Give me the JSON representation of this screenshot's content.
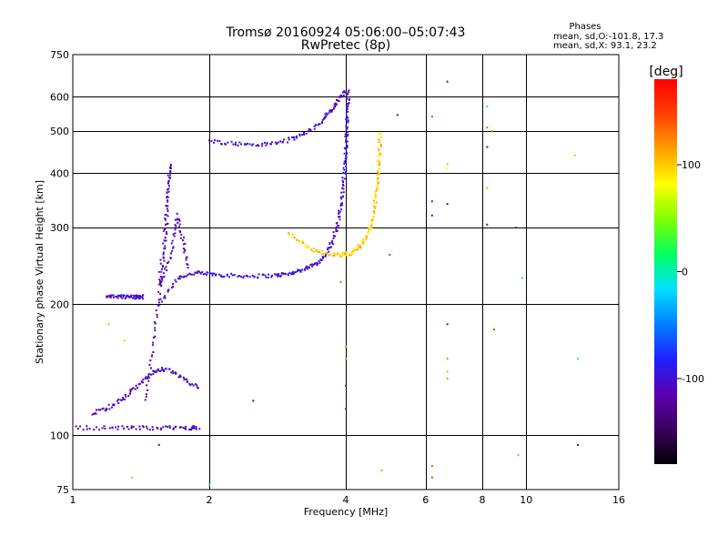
{
  "chart_data": {
    "type": "scatter",
    "title": "Tromsø 20160924 05:06:00–05:07:43",
    "subtitle": "RwPretec (8p)",
    "xlabel": "Frequency [MHz]",
    "ylabel": "Stationary phase Virtual Height [km]",
    "x_scale": "log2",
    "y_scale": "log",
    "xlim": [
      1,
      16
    ],
    "ylim": [
      75,
      750
    ],
    "x_ticks": [
      1,
      2,
      4,
      6,
      8,
      10,
      16
    ],
    "y_ticks": [
      75,
      100,
      200,
      300,
      400,
      500,
      600,
      750
    ],
    "grid": true,
    "colorbar": {
      "label": "[deg]",
      "range": [
        -180,
        180
      ],
      "ticks": [
        100,
        0,
        -100
      ],
      "colormap": [
        "#000000",
        "#3a0060",
        "#5c00b0",
        "#2020ff",
        "#0080ff",
        "#00e0ff",
        "#00ff60",
        "#80ff00",
        "#ffff00",
        "#ffa000",
        "#ff4000",
        "#ff0000"
      ]
    },
    "stats": {
      "heading": "Phases",
      "line_o": "mean, sd,O:-101.8, 17.3",
      "line_x": "mean, sd,X:  93.1, 23.2"
    },
    "traces": [
      {
        "mode": "O",
        "phase": -100,
        "points": [
          [
            1.55,
            200
          ],
          [
            1.7,
            230
          ],
          [
            1.85,
            236
          ],
          [
            2.0,
            235
          ],
          [
            2.2,
            233
          ],
          [
            2.5,
            232
          ],
          [
            2.8,
            233
          ],
          [
            3.0,
            235
          ],
          [
            3.2,
            240
          ],
          [
            3.4,
            246
          ],
          [
            3.6,
            258
          ],
          [
            3.75,
            280
          ],
          [
            3.85,
            310
          ],
          [
            3.92,
            350
          ],
          [
            3.97,
            400
          ],
          [
            4.0,
            450
          ],
          [
            4.02,
            500
          ],
          [
            4.04,
            560
          ],
          [
            4.05,
            620
          ]
        ]
      },
      {
        "mode": "O-upper",
        "phase": -100,
        "points": [
          [
            2.0,
            475
          ],
          [
            2.3,
            468
          ],
          [
            2.6,
            465
          ],
          [
            2.9,
            472
          ],
          [
            3.2,
            490
          ],
          [
            3.5,
            520
          ],
          [
            3.7,
            555
          ],
          [
            3.85,
            590
          ],
          [
            4.0,
            620
          ]
        ]
      },
      {
        "mode": "X",
        "phase": 100,
        "points": [
          [
            3.0,
            290
          ],
          [
            3.3,
            270
          ],
          [
            3.6,
            262
          ],
          [
            3.9,
            260
          ],
          [
            4.1,
            262
          ],
          [
            4.3,
            272
          ],
          [
            4.5,
            290
          ],
          [
            4.6,
            320
          ],
          [
            4.68,
            360
          ],
          [
            4.72,
            400
          ],
          [
            4.75,
            450
          ],
          [
            4.77,
            500
          ]
        ]
      },
      {
        "mode": "Es",
        "phase": -110,
        "points": [
          [
            1.0,
            104
          ],
          [
            1.2,
            104
          ],
          [
            1.4,
            104
          ],
          [
            1.6,
            104
          ],
          [
            1.8,
            104
          ],
          [
            1.9,
            104
          ]
        ]
      },
      {
        "mode": "F-spread",
        "phase": -110,
        "points": [
          [
            1.45,
            120
          ],
          [
            1.5,
            160
          ],
          [
            1.55,
            210
          ],
          [
            1.6,
            280
          ],
          [
            1.62,
            350
          ],
          [
            1.64,
            420
          ],
          [
            1.6,
            300
          ],
          [
            1.55,
            220
          ],
          [
            1.65,
            260
          ],
          [
            1.7,
            320
          ],
          [
            1.75,
            280
          ],
          [
            1.8,
            240
          ]
        ]
      },
      {
        "mode": "Es-secondary",
        "phase": -110,
        "points": [
          [
            1.1,
            112
          ],
          [
            1.2,
            116
          ],
          [
            1.3,
            122
          ],
          [
            1.4,
            130
          ],
          [
            1.5,
            140
          ],
          [
            1.6,
            142
          ],
          [
            1.75,
            135
          ],
          [
            1.9,
            128
          ]
        ]
      },
      {
        "mode": "layer-210",
        "phase": -105,
        "points": [
          [
            1.18,
            208
          ],
          [
            1.25,
            208
          ],
          [
            1.32,
            208
          ],
          [
            1.38,
            208
          ],
          [
            1.44,
            208
          ]
        ]
      }
    ],
    "isolated_points": [
      [
        6.2,
        85,
        140
      ],
      [
        6.2,
        80,
        160
      ],
      [
        6.2,
        345,
        -80
      ],
      [
        6.2,
        320,
        -100
      ],
      [
        6.2,
        540,
        150
      ],
      [
        6.7,
        650,
        -100
      ],
      [
        6.7,
        410,
        80
      ],
      [
        6.7,
        420,
        40
      ],
      [
        6.7,
        340,
        -110
      ],
      [
        6.7,
        180,
        -100
      ],
      [
        6.7,
        140,
        110
      ],
      [
        6.7,
        135,
        120
      ],
      [
        6.7,
        150,
        130
      ],
      [
        8.2,
        570,
        20
      ],
      [
        8.2,
        510,
        130
      ],
      [
        8.2,
        370,
        110
      ],
      [
        8.2,
        460,
        -100
      ],
      [
        8.2,
        305,
        -100
      ],
      [
        8.4,
        500,
        140
      ],
      [
        8.5,
        175,
        150
      ],
      [
        9.5,
        300,
        -100
      ],
      [
        9.8,
        230,
        10
      ],
      [
        9.6,
        90,
        0
      ],
      [
        12.8,
        440,
        110
      ],
      [
        13.0,
        150,
        0
      ],
      [
        13.0,
        95,
        -120
      ],
      [
        4.0,
        130,
        -100
      ],
      [
        4.0,
        115,
        -100
      ],
      [
        4.0,
        160,
        120
      ],
      [
        4.0,
        150,
        110
      ],
      [
        5.2,
        545,
        -100
      ],
      [
        5.0,
        260,
        150
      ],
      [
        4.8,
        83,
        120
      ],
      [
        1.35,
        80,
        40
      ],
      [
        1.55,
        95,
        -100
      ],
      [
        1.2,
        180,
        110
      ],
      [
        1.3,
        165,
        100
      ],
      [
        2.5,
        120,
        -100
      ],
      [
        2.0,
        77,
        0
      ],
      [
        3.9,
        225,
        140
      ]
    ]
  }
}
